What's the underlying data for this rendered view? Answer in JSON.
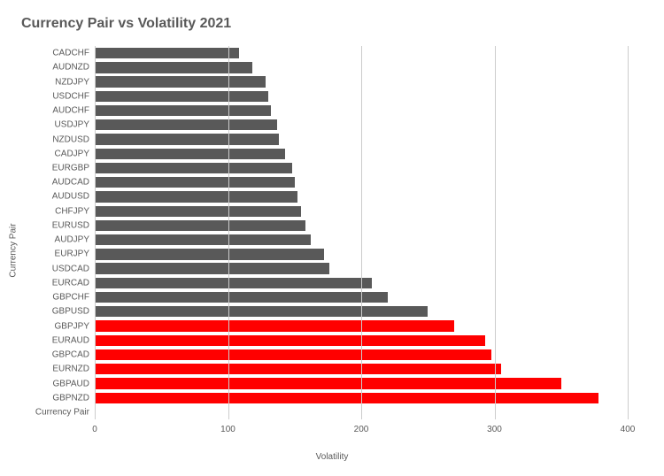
{
  "chart": {
    "type": "bar-horizontal",
    "title": "Currency Pair vs Volatility 2021",
    "title_fontsize": 16,
    "title_color": "#595959",
    "ylabel": "Currency Pair",
    "xlabel": "Volatility",
    "label_fontsize": 10,
    "label_color": "#595959",
    "tick_fontsize": 10,
    "tick_color": "#595959",
    "background_color": "#ffffff",
    "grid_color": "#cccccc",
    "x_min": 0,
    "x_max": 400,
    "x_tick_step": 100,
    "bar_width": 0.76,
    "rows": [
      {
        "label": "CADCHF",
        "value": 108,
        "color": "#595959"
      },
      {
        "label": "AUDNZD",
        "value": 118,
        "color": "#595959"
      },
      {
        "label": "NZDJPY",
        "value": 128,
        "color": "#595959"
      },
      {
        "label": "USDCHF",
        "value": 130,
        "color": "#595959"
      },
      {
        "label": "AUDCHF",
        "value": 132,
        "color": "#595959"
      },
      {
        "label": "USDJPY",
        "value": 137,
        "color": "#595959"
      },
      {
        "label": "NZDUSD",
        "value": 138,
        "color": "#595959"
      },
      {
        "label": "CADJPY",
        "value": 143,
        "color": "#595959"
      },
      {
        "label": "EURGBP",
        "value": 148,
        "color": "#595959"
      },
      {
        "label": "AUDCAD",
        "value": 150,
        "color": "#595959"
      },
      {
        "label": "AUDUSD",
        "value": 152,
        "color": "#595959"
      },
      {
        "label": "CHFJPY",
        "value": 155,
        "color": "#595959"
      },
      {
        "label": "EURUSD",
        "value": 158,
        "color": "#595959"
      },
      {
        "label": "AUDJPY",
        "value": 162,
        "color": "#595959"
      },
      {
        "label": "EURJPY",
        "value": 172,
        "color": "#595959"
      },
      {
        "label": "USDCAD",
        "value": 176,
        "color": "#595959"
      },
      {
        "label": "EURCAD",
        "value": 208,
        "color": "#595959"
      },
      {
        "label": "GBPCHF",
        "value": 220,
        "color": "#595959"
      },
      {
        "label": "GBPUSD",
        "value": 250,
        "color": "#595959"
      },
      {
        "label": "GBPJPY",
        "value": 270,
        "color": "#ff0000"
      },
      {
        "label": "EURAUD",
        "value": 293,
        "color": "#ff0000"
      },
      {
        "label": "GBPCAD",
        "value": 298,
        "color": "#ff0000"
      },
      {
        "label": "EURNZD",
        "value": 305,
        "color": "#ff0000"
      },
      {
        "label": "GBPAUD",
        "value": 350,
        "color": "#ff0000"
      },
      {
        "label": "GBPNZD",
        "value": 378,
        "color": "#ff0000"
      },
      {
        "label": "Currency Pair",
        "value": 0,
        "color": "#595959"
      }
    ]
  }
}
